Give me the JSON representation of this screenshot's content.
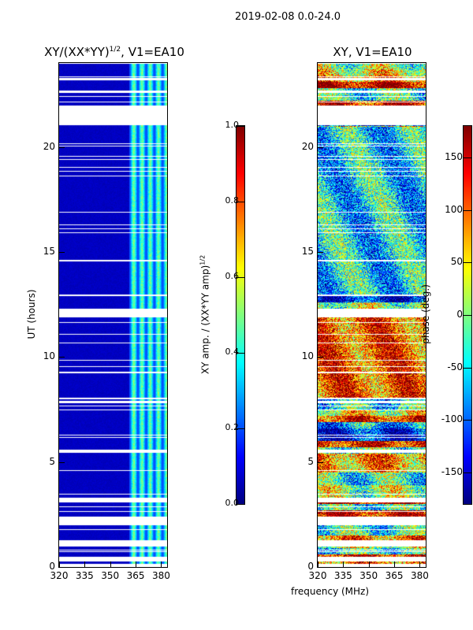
{
  "suptitle": "2019-02-08 0.0-24.0",
  "chart_data": [
    {
      "type": "heatmap",
      "title": "XY/(XX*YY)^1/2, V1=EA10",
      "title_main": "XY/(XX*YY)",
      "title_sup": "1/2",
      "title_tail": ", V1=EA10",
      "xlabel": "frequency (MHz)",
      "ylabel": "UT (hours)",
      "xlim": [
        320,
        383.5
      ],
      "ylim": [
        0,
        24
      ],
      "xticks": [
        "320",
        "335",
        "350",
        "365",
        "380"
      ],
      "yticks": [
        "0",
        "5",
        "10",
        "15",
        "20"
      ],
      "colorbar": {
        "label_main": "XY amp. / (XX*YY amp)",
        "label_sup": "1/2",
        "range": [
          0,
          1
        ],
        "ticks": [
          "0.0",
          "0.2",
          "0.4",
          "0.6",
          "0.8",
          "1.0"
        ]
      },
      "description_values": {
        "background_level": 0.05,
        "active_band_mhz": [
          361,
          383
        ],
        "active_band_level": [
          0.2,
          0.55
        ]
      },
      "blank_hours": [
        [
          21.05,
          22.0
        ],
        [
          22.6,
          22.7
        ],
        [
          23.2,
          23.3
        ],
        [
          11.9,
          12.3
        ],
        [
          12.9,
          13.0
        ],
        [
          7.8,
          7.9
        ],
        [
          5.45,
          5.6
        ],
        [
          3.1,
          3.3
        ],
        [
          2.0,
          2.4
        ],
        [
          1.0,
          1.3
        ],
        [
          0.3,
          0.5
        ],
        [
          0,
          0.15
        ]
      ]
    },
    {
      "type": "heatmap",
      "title": "XY, V1=EA10",
      "xlabel": "frequency (MHz)",
      "ylabel": "",
      "xlim": [
        320,
        383.5
      ],
      "ylim": [
        0,
        24
      ],
      "xticks": [
        "320",
        "335",
        "350",
        "365",
        "380"
      ],
      "yticks": [
        "0",
        "5",
        "10",
        "15",
        "20"
      ],
      "colorbar": {
        "label": "phase (deg.)",
        "range": [
          -180,
          180
        ],
        "ticks": [
          "-150",
          "-100",
          "-50",
          "0",
          "50",
          "100",
          "150"
        ]
      },
      "blank_hours": [
        [
          21.05,
          22.0
        ],
        [
          22.6,
          22.7
        ],
        [
          23.2,
          23.3
        ],
        [
          11.9,
          12.3
        ],
        [
          12.9,
          13.0
        ],
        [
          7.8,
          7.9
        ],
        [
          5.45,
          5.6
        ],
        [
          3.1,
          3.3
        ],
        [
          2.0,
          2.4
        ],
        [
          1.0,
          1.3
        ],
        [
          0.3,
          0.5
        ],
        [
          0,
          0.15
        ]
      ]
    }
  ]
}
